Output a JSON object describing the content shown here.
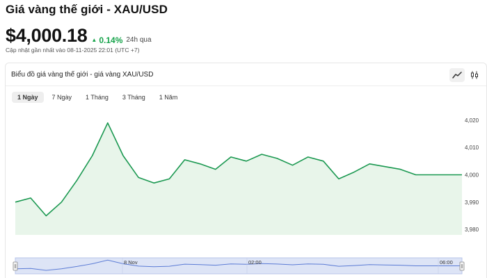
{
  "header": {
    "title": "Giá vàng thế giới - XAU/USD",
    "price": "$4,000.18",
    "change": "0.14%",
    "change_period": "24h qua",
    "updated": "Cập nhật gần nhất vào 08-11-2025 22:01 (UTC +7)"
  },
  "card": {
    "title": "Biểu đồ giá vàng thế giới - giá vàng XAU/USD",
    "chart_type_icons": [
      "line-chart-icon",
      "candlestick-icon"
    ]
  },
  "range_tabs": [
    {
      "label": "1 Ngày",
      "active": true
    },
    {
      "label": "7 Ngày",
      "active": false
    },
    {
      "label": "1 Tháng",
      "active": false
    },
    {
      "label": "3 Tháng",
      "active": false
    },
    {
      "label": "1 Năm",
      "active": false
    }
  ],
  "colors": {
    "line": "#1a9850",
    "area": "#e8f5ea",
    "up": "#16a34a",
    "navigator_fill": "#dde4f6",
    "navigator_border": "#b9c6ea"
  },
  "chart_data": {
    "type": "area",
    "title": "",
    "xlabel": "",
    "ylabel": "",
    "ylim": [
      3978,
      4022
    ],
    "y_ticks": [
      "4,020",
      "4,010",
      "4,000",
      "3,990",
      "3,980"
    ],
    "y_tick_values": [
      4020,
      4010,
      4000,
      3990,
      3980
    ],
    "series": [
      {
        "values": [
          3990,
          3991.5,
          3985,
          3990,
          3998,
          4007,
          4019,
          4007,
          3999,
          3997,
          3998.5,
          4005.5,
          4004,
          4002,
          4006.5,
          4005,
          4007.5,
          4006,
          4003.5,
          4006.5,
          4005,
          3998.5,
          4001,
          4004,
          4003,
          4002,
          4000,
          4000,
          4000,
          4000
        ]
      }
    ],
    "navigator": {
      "labels": [
        "8 Nov",
        "02:00",
        "06:00"
      ]
    }
  }
}
